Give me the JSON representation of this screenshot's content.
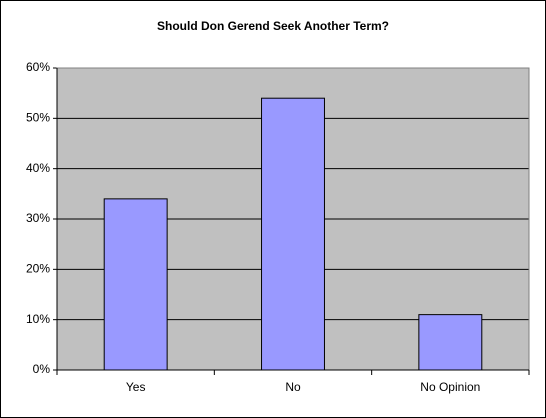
{
  "chart_data": {
    "type": "bar",
    "title": "Should Don Gerend Seek Another Term?",
    "categories": [
      "Yes",
      "No",
      "No Opinion"
    ],
    "values": [
      34,
      54,
      11
    ],
    "color": "#9999ff",
    "ylim": [
      0,
      60
    ],
    "yticks": [
      {
        "value": 0,
        "label": "0%"
      },
      {
        "value": 10,
        "label": "10%"
      },
      {
        "value": 20,
        "label": "20%"
      },
      {
        "value": 30,
        "label": "30%"
      },
      {
        "value": 40,
        "label": "40%"
      },
      {
        "value": 50,
        "label": "50%"
      },
      {
        "value": 60,
        "label": "60%"
      }
    ],
    "grid": true
  }
}
